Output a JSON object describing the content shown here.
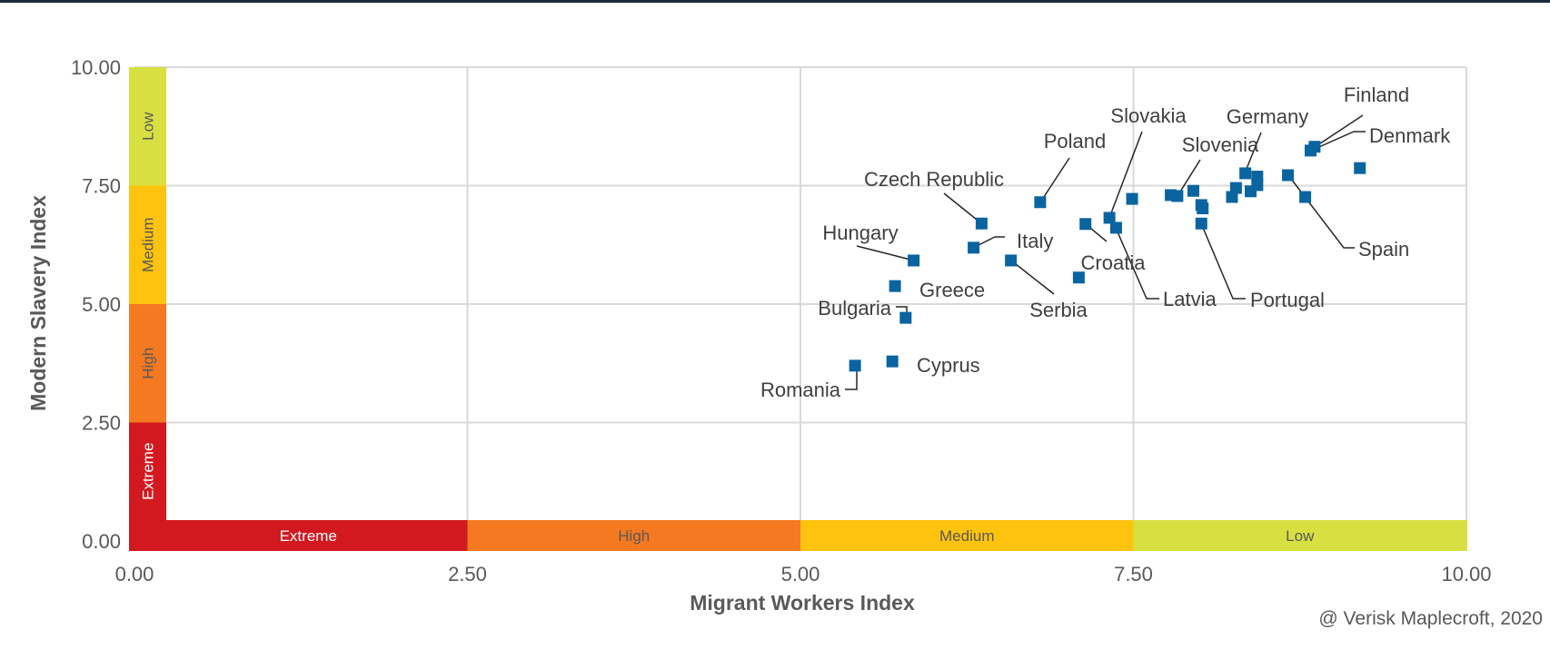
{
  "chart_data": {
    "type": "scatter",
    "xlabel": "Migrant Workers Index",
    "ylabel": "Modern Slavery Index",
    "xlim": [
      0,
      10
    ],
    "ylim": [
      0,
      10
    ],
    "xticks": [
      "0.00",
      "2.50",
      "5.00",
      "7.50",
      "10.00"
    ],
    "yticks": [
      "0.00",
      "2.50",
      "5.00",
      "7.50",
      "10.00"
    ],
    "grid": true,
    "marker_color": "#0a64a0",
    "risk_bands": [
      {
        "label": "Extreme",
        "from": 0,
        "to": 2.5,
        "color": "#d2191f"
      },
      {
        "label": "High",
        "from": 2.5,
        "to": 5,
        "color": "#f47920"
      },
      {
        "label": "Medium",
        "from": 5,
        "to": 7.5,
        "color": "#fdc30f"
      },
      {
        "label": "Low",
        "from": 7.5,
        "to": 10,
        "color": "#d7e040"
      }
    ],
    "points": [
      {
        "label": "Romania",
        "x": 5.41,
        "y": 3.7
      },
      {
        "label": "Cyprus",
        "x": 5.69,
        "y": 3.79
      },
      {
        "label": "Bulgaria",
        "x": 5.79,
        "y": 4.71
      },
      {
        "label": "Greece",
        "x": 5.71,
        "y": 5.38
      },
      {
        "label": "Hungary",
        "x": 5.85,
        "y": 5.92
      },
      {
        "label": "Italy",
        "x": 6.3,
        "y": 6.19
      },
      {
        "label": "Czech Republic",
        "x": 6.36,
        "y": 6.7
      },
      {
        "label": "Serbia",
        "x": 6.58,
        "y": 5.92
      },
      {
        "label": "Poland",
        "x": 6.8,
        "y": 7.15
      },
      {
        "label": "",
        "x": 7.09,
        "y": 5.56
      },
      {
        "label": "Croatia",
        "x": 7.14,
        "y": 6.69
      },
      {
        "label": "Slovakia",
        "x": 7.32,
        "y": 6.82
      },
      {
        "label": "Latvia",
        "x": 7.37,
        "y": 6.61
      },
      {
        "label": "",
        "x": 7.49,
        "y": 7.22
      },
      {
        "label": "",
        "x": 7.78,
        "y": 7.3
      },
      {
        "label": "Slovenia",
        "x": 7.83,
        "y": 7.28
      },
      {
        "label": "",
        "x": 7.95,
        "y": 7.39
      },
      {
        "label": "",
        "x": 8.01,
        "y": 7.09
      },
      {
        "label": "",
        "x": 8.02,
        "y": 7.02
      },
      {
        "label": "Portugal",
        "x": 8.01,
        "y": 6.7
      },
      {
        "label": "",
        "x": 8.24,
        "y": 7.26
      },
      {
        "label": "",
        "x": 8.27,
        "y": 7.45
      },
      {
        "label": "Germany",
        "x": 8.34,
        "y": 7.76
      },
      {
        "label": "",
        "x": 8.38,
        "y": 7.38
      },
      {
        "label": "",
        "x": 8.43,
        "y": 7.69
      },
      {
        "label": "",
        "x": 8.43,
        "y": 7.51
      },
      {
        "label": "Spain",
        "x": 8.66,
        "y": 7.72
      },
      {
        "label": "",
        "x": 8.79,
        "y": 7.26
      },
      {
        "label": "Denmark",
        "x": 8.83,
        "y": 8.24
      },
      {
        "label": "Finland",
        "x": 8.86,
        "y": 8.32
      },
      {
        "label": "",
        "x": 9.2,
        "y": 7.87
      }
    ],
    "source": "@ Verisk Maplecroft, 2020"
  }
}
